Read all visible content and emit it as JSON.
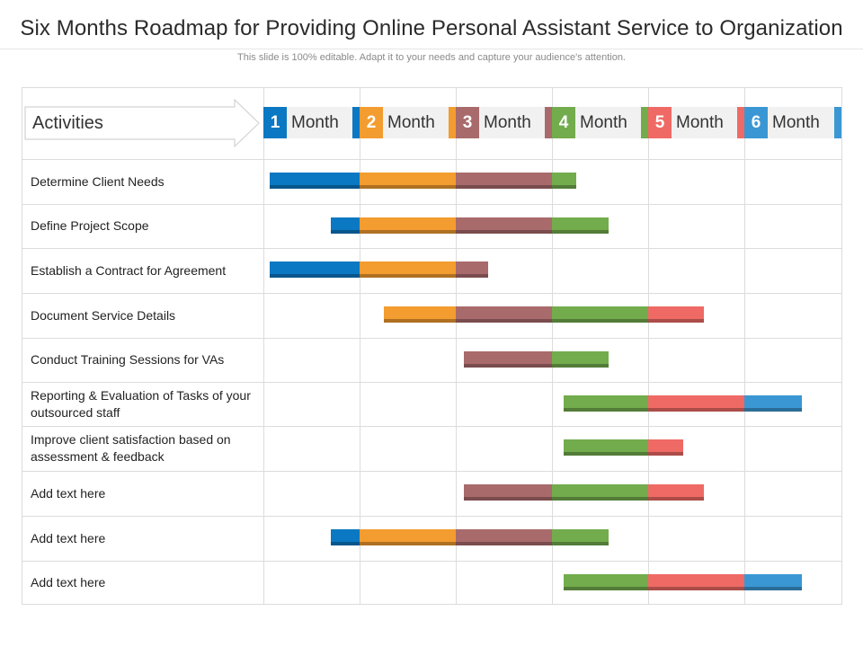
{
  "title": "Six Months Roadmap for Providing Online Personal Assistant Service to Organization",
  "subtitle": "This slide is 100% editable. Adapt it to your needs and capture your audience's attention.",
  "chart_data": {
    "type": "gantt",
    "activities_header": "Activities",
    "months": [
      {
        "number": "1",
        "label": "Month",
        "color": "#0a78c2"
      },
      {
        "number": "2",
        "label": "Month",
        "color": "#f39c2f"
      },
      {
        "number": "3",
        "label": "Month",
        "color": "#a96a6b"
      },
      {
        "number": "4",
        "label": "Month",
        "color": "#72ac4d"
      },
      {
        "number": "5",
        "label": "Month",
        "color": "#ef6a65"
      },
      {
        "number": "6",
        "label": "Month",
        "color": "#3b97d3"
      }
    ],
    "x_unit": "month",
    "xlim": [
      0,
      6
    ],
    "rows": [
      {
        "label": "Determine Client Needs",
        "start": 0.07,
        "end": 3.25
      },
      {
        "label": "Define Project Scope",
        "start": 0.7,
        "end": 3.59
      },
      {
        "label": "Establish a Contract for Agreement",
        "start": 0.07,
        "end": 2.34
      },
      {
        "label": "Document Service Details",
        "start": 1.25,
        "end": 4.58
      },
      {
        "label": "Conduct Training Sessions for VAs",
        "start": 2.08,
        "end": 3.59
      },
      {
        "label": "Reporting & Evaluation of Tasks of your outsourced staff",
        "start": 3.12,
        "end": 5.59
      },
      {
        "label": "Improve  client satisfaction based on assessment & feedback",
        "start": 3.12,
        "end": 4.36
      },
      {
        "label": "Add text here",
        "start": 2.08,
        "end": 4.58
      },
      {
        "label": "Add text here",
        "start": 0.7,
        "end": 3.59
      },
      {
        "label": "Add text here",
        "start": 3.12,
        "end": 5.59
      }
    ]
  }
}
